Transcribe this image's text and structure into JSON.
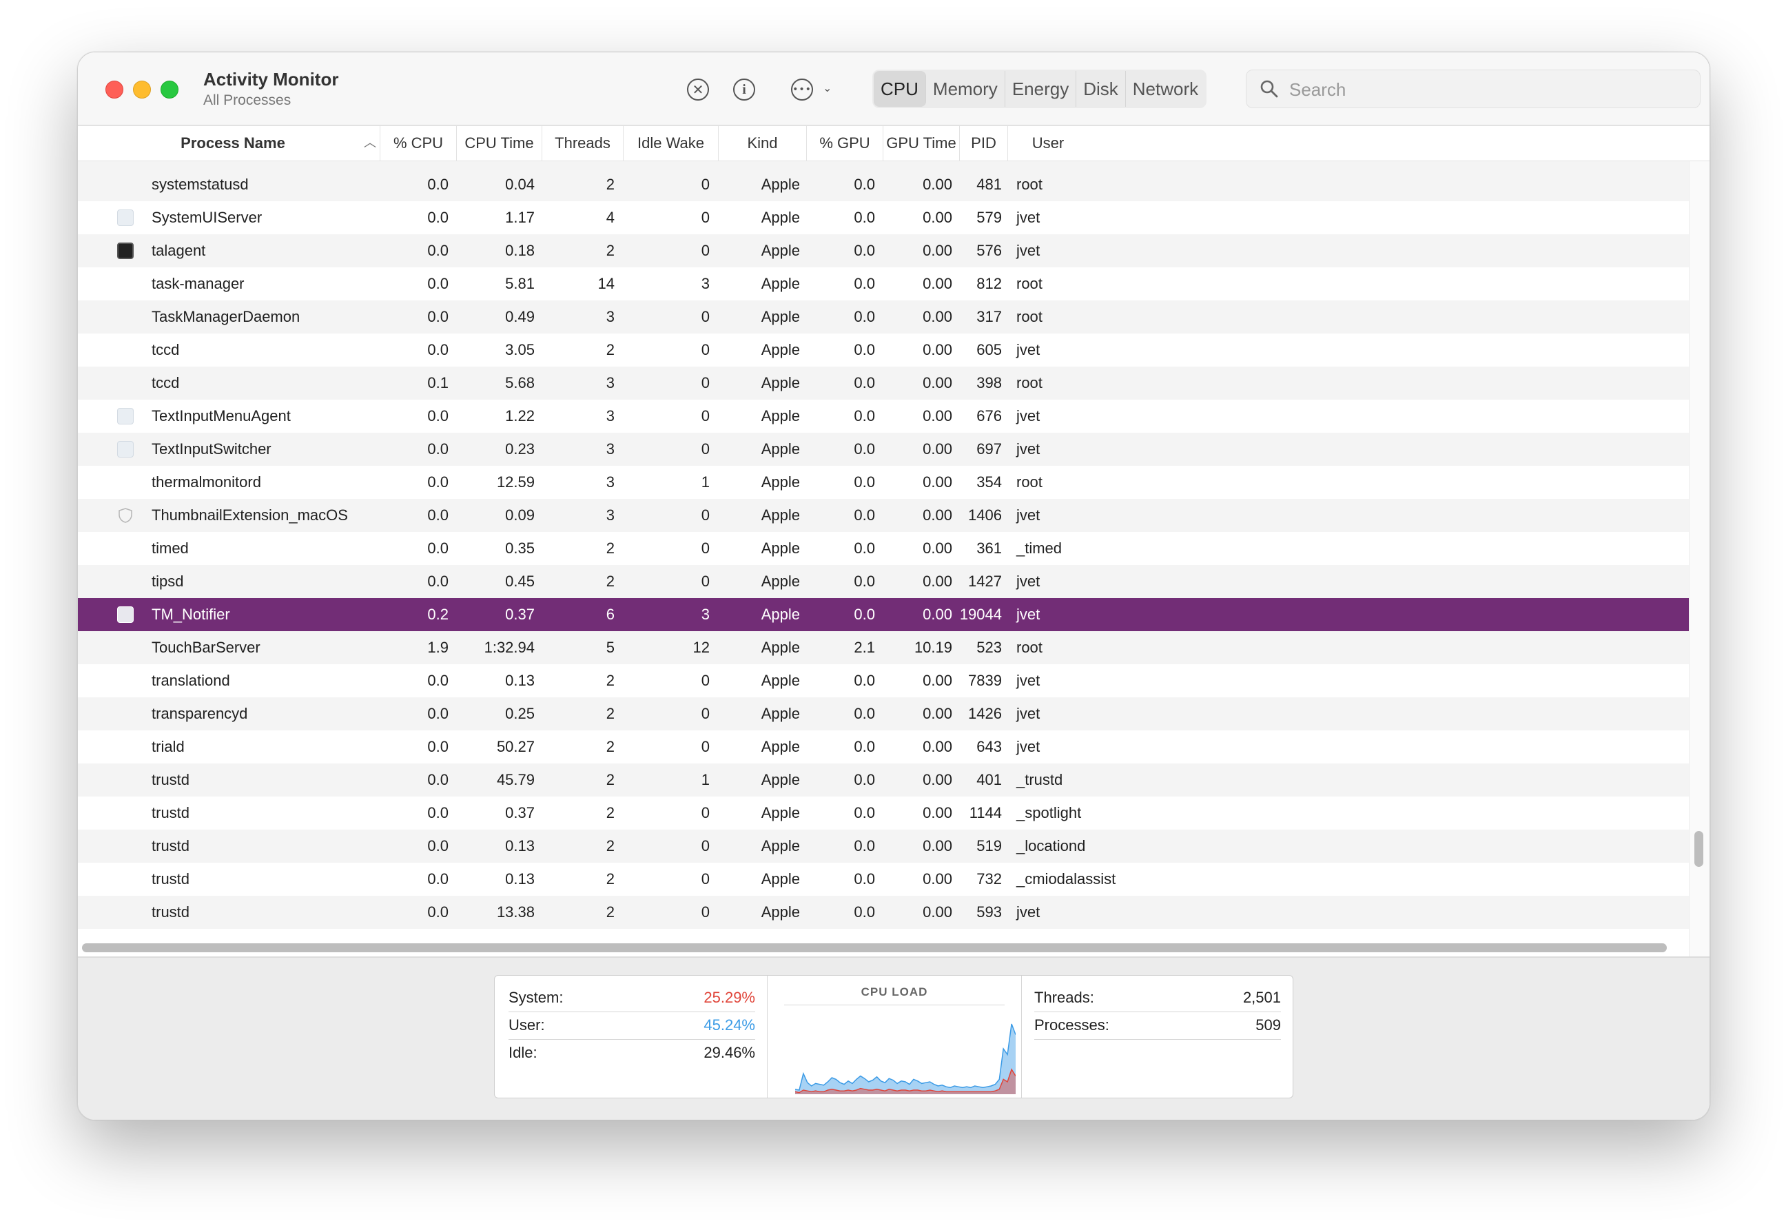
{
  "app": {
    "title": "Activity Monitor",
    "subtitle": "All Processes"
  },
  "toolbar": {
    "icons": [
      "stop-process-icon",
      "info-icon",
      "more-actions-icon",
      "chevron-down-icon"
    ],
    "tabs": [
      {
        "label": "CPU",
        "active": true
      },
      {
        "label": "Memory",
        "active": false
      },
      {
        "label": "Energy",
        "active": false
      },
      {
        "label": "Disk",
        "active": false
      },
      {
        "label": "Network",
        "active": false
      }
    ],
    "search": {
      "placeholder": "Search",
      "value": ""
    }
  },
  "table": {
    "columns": [
      "Process Name",
      "% CPU",
      "CPU Time",
      "Threads",
      "Idle Wake Ups",
      "Kind",
      "% GPU",
      "GPU Time",
      "PID",
      "User"
    ],
    "sort": {
      "column": "Process Name",
      "direction": "ascending"
    },
    "selected_color": "#722d76",
    "rows": [
      {
        "icon": "none",
        "name": "systemstatusd",
        "cpu": "0.0",
        "cpu_time": "0.04",
        "threads": "2",
        "idle_wake_ups": "0",
        "kind": "Apple",
        "gpu": "0.0",
        "gpu_time": "0.00",
        "pid": "481",
        "user": "root"
      },
      {
        "icon": "generic-app-icon",
        "name": "SystemUIServer",
        "cpu": "0.0",
        "cpu_time": "1.17",
        "threads": "4",
        "idle_wake_ups": "0",
        "kind": "Apple",
        "gpu": "0.0",
        "gpu_time": "0.00",
        "pid": "579",
        "user": "jvet"
      },
      {
        "icon": "terminal-icon",
        "name": "talagent",
        "cpu": "0.0",
        "cpu_time": "0.18",
        "threads": "2",
        "idle_wake_ups": "0",
        "kind": "Apple",
        "gpu": "0.0",
        "gpu_time": "0.00",
        "pid": "576",
        "user": "jvet"
      },
      {
        "icon": "none",
        "name": "task-manager",
        "cpu": "0.0",
        "cpu_time": "5.81",
        "threads": "14",
        "idle_wake_ups": "3",
        "kind": "Apple",
        "gpu": "0.0",
        "gpu_time": "0.00",
        "pid": "812",
        "user": "root"
      },
      {
        "icon": "none",
        "name": "TaskManagerDaemon",
        "cpu": "0.0",
        "cpu_time": "0.49",
        "threads": "3",
        "idle_wake_ups": "0",
        "kind": "Apple",
        "gpu": "0.0",
        "gpu_time": "0.00",
        "pid": "317",
        "user": "root"
      },
      {
        "icon": "none",
        "name": "tccd",
        "cpu": "0.0",
        "cpu_time": "3.05",
        "threads": "2",
        "idle_wake_ups": "0",
        "kind": "Apple",
        "gpu": "0.0",
        "gpu_time": "0.00",
        "pid": "605",
        "user": "jvet"
      },
      {
        "icon": "none",
        "name": "tccd",
        "cpu": "0.1",
        "cpu_time": "5.68",
        "threads": "3",
        "idle_wake_ups": "0",
        "kind": "Apple",
        "gpu": "0.0",
        "gpu_time": "0.00",
        "pid": "398",
        "user": "root"
      },
      {
        "icon": "generic-app-icon",
        "name": "TextInputMenuAgent",
        "cpu": "0.0",
        "cpu_time": "1.22",
        "threads": "3",
        "idle_wake_ups": "0",
        "kind": "Apple",
        "gpu": "0.0",
        "gpu_time": "0.00",
        "pid": "676",
        "user": "jvet"
      },
      {
        "icon": "generic-app-icon",
        "name": "TextInputSwitcher",
        "cpu": "0.0",
        "cpu_time": "0.23",
        "threads": "3",
        "idle_wake_ups": "0",
        "kind": "Apple",
        "gpu": "0.0",
        "gpu_time": "0.00",
        "pid": "697",
        "user": "jvet"
      },
      {
        "icon": "none",
        "name": "thermalmonitord",
        "cpu": "0.0",
        "cpu_time": "12.59",
        "threads": "3",
        "idle_wake_ups": "1",
        "kind": "Apple",
        "gpu": "0.0",
        "gpu_time": "0.00",
        "pid": "354",
        "user": "root"
      },
      {
        "icon": "shield-icon",
        "name": "ThumbnailExtension_macOS",
        "cpu": "0.0",
        "cpu_time": "0.09",
        "threads": "3",
        "idle_wake_ups": "0",
        "kind": "Apple",
        "gpu": "0.0",
        "gpu_time": "0.00",
        "pid": "1406",
        "user": "jvet"
      },
      {
        "icon": "none",
        "name": "timed",
        "cpu": "0.0",
        "cpu_time": "0.35",
        "threads": "2",
        "idle_wake_ups": "0",
        "kind": "Apple",
        "gpu": "0.0",
        "gpu_time": "0.00",
        "pid": "361",
        "user": "_timed"
      },
      {
        "icon": "none",
        "name": "tipsd",
        "cpu": "0.0",
        "cpu_time": "0.45",
        "threads": "2",
        "idle_wake_ups": "0",
        "kind": "Apple",
        "gpu": "0.0",
        "gpu_time": "0.00",
        "pid": "1427",
        "user": "jvet"
      },
      {
        "icon": "tm-notifier-icon",
        "name": "TM_Notifier",
        "cpu": "0.2",
        "cpu_time": "0.37",
        "threads": "6",
        "idle_wake_ups": "3",
        "kind": "Apple",
        "gpu": "0.0",
        "gpu_time": "0.00",
        "pid": "19044",
        "user": "jvet",
        "selected": true
      },
      {
        "icon": "none",
        "name": "TouchBarServer",
        "cpu": "1.9",
        "cpu_time": "1:32.94",
        "threads": "5",
        "idle_wake_ups": "12",
        "kind": "Apple",
        "gpu": "2.1",
        "gpu_time": "10.19",
        "pid": "523",
        "user": "root"
      },
      {
        "icon": "none",
        "name": "translationd",
        "cpu": "0.0",
        "cpu_time": "0.13",
        "threads": "2",
        "idle_wake_ups": "0",
        "kind": "Apple",
        "gpu": "0.0",
        "gpu_time": "0.00",
        "pid": "7839",
        "user": "jvet"
      },
      {
        "icon": "none",
        "name": "transparencyd",
        "cpu": "0.0",
        "cpu_time": "0.25",
        "threads": "2",
        "idle_wake_ups": "0",
        "kind": "Apple",
        "gpu": "0.0",
        "gpu_time": "0.00",
        "pid": "1426",
        "user": "jvet"
      },
      {
        "icon": "none",
        "name": "triald",
        "cpu": "0.0",
        "cpu_time": "50.27",
        "threads": "2",
        "idle_wake_ups": "0",
        "kind": "Apple",
        "gpu": "0.0",
        "gpu_time": "0.00",
        "pid": "643",
        "user": "jvet"
      },
      {
        "icon": "none",
        "name": "trustd",
        "cpu": "0.0",
        "cpu_time": "45.79",
        "threads": "2",
        "idle_wake_ups": "1",
        "kind": "Apple",
        "gpu": "0.0",
        "gpu_time": "0.00",
        "pid": "401",
        "user": "_trustd"
      },
      {
        "icon": "none",
        "name": "trustd",
        "cpu": "0.0",
        "cpu_time": "0.37",
        "threads": "2",
        "idle_wake_ups": "0",
        "kind": "Apple",
        "gpu": "0.0",
        "gpu_time": "0.00",
        "pid": "1144",
        "user": "_spotlight"
      },
      {
        "icon": "none",
        "name": "trustd",
        "cpu": "0.0",
        "cpu_time": "0.13",
        "threads": "2",
        "idle_wake_ups": "0",
        "kind": "Apple",
        "gpu": "0.0",
        "gpu_time": "0.00",
        "pid": "519",
        "user": "_locationd"
      },
      {
        "icon": "none",
        "name": "trustd",
        "cpu": "0.0",
        "cpu_time": "0.13",
        "threads": "2",
        "idle_wake_ups": "0",
        "kind": "Apple",
        "gpu": "0.0",
        "gpu_time": "0.00",
        "pid": "732",
        "user": "_cmiodalassist"
      },
      {
        "icon": "none",
        "name": "trustd",
        "cpu": "0.0",
        "cpu_time": "13.38",
        "threads": "2",
        "idle_wake_ups": "0",
        "kind": "Apple",
        "gpu": "0.0",
        "gpu_time": "0.00",
        "pid": "593",
        "user": "jvet"
      }
    ]
  },
  "summary": {
    "system": {
      "label": "System:",
      "value": "25.29%",
      "color": "#e0453a"
    },
    "user": {
      "label": "User:",
      "value": "45.24%",
      "color": "#3b9be6"
    },
    "idle": {
      "label": "Idle:",
      "value": "29.46%"
    },
    "cpu_load_title": "CPU LOAD",
    "threads": {
      "label": "Threads:",
      "value": "2,501"
    },
    "processes": {
      "label": "Processes:",
      "value": "509"
    }
  },
  "cpu_load_graph": {
    "user_series": [
      0.06,
      0.05,
      0.25,
      0.14,
      0.1,
      0.13,
      0.12,
      0.11,
      0.15,
      0.2,
      0.18,
      0.14,
      0.12,
      0.16,
      0.13,
      0.18,
      0.22,
      0.19,
      0.15,
      0.17,
      0.21,
      0.16,
      0.14,
      0.19,
      0.17,
      0.13,
      0.16,
      0.15,
      0.12,
      0.18,
      0.16,
      0.13,
      0.14,
      0.15,
      0.12,
      0.1,
      0.11,
      0.09,
      0.08,
      0.1,
      0.09,
      0.08,
      0.09,
      0.08,
      0.1,
      0.09,
      0.08,
      0.09,
      0.1,
      0.12,
      0.18,
      0.55,
      0.48,
      0.85,
      0.72
    ],
    "system_series": [
      0.03,
      0.02,
      0.05,
      0.04,
      0.03,
      0.04,
      0.03,
      0.03,
      0.05,
      0.06,
      0.05,
      0.04,
      0.04,
      0.05,
      0.04,
      0.05,
      0.07,
      0.06,
      0.05,
      0.05,
      0.06,
      0.05,
      0.04,
      0.06,
      0.05,
      0.04,
      0.05,
      0.05,
      0.04,
      0.05,
      0.05,
      0.04,
      0.04,
      0.05,
      0.04,
      0.03,
      0.04,
      0.03,
      0.03,
      0.03,
      0.03,
      0.03,
      0.03,
      0.03,
      0.03,
      0.03,
      0.03,
      0.03,
      0.03,
      0.04,
      0.06,
      0.18,
      0.15,
      0.3,
      0.22
    ],
    "user_color": "#3b9be6",
    "system_color": "#e0453a"
  }
}
